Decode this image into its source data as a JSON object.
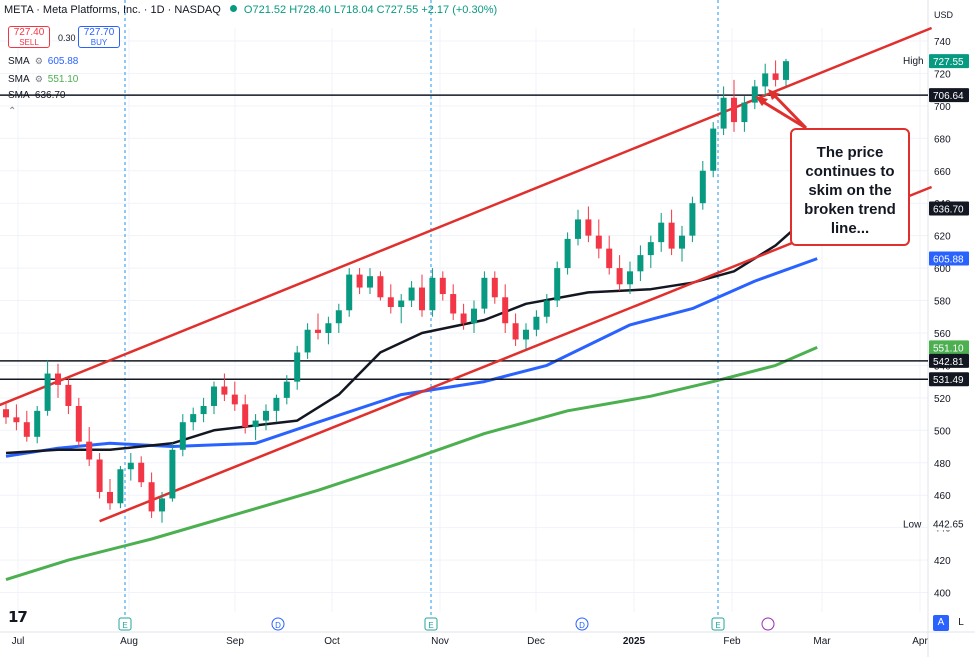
{
  "header": {
    "symbol": "META · Meta Platforms, Inc. · 1D · NASDAQ",
    "open": "O721.52",
    "high": "H728.40",
    "low": "L718.04",
    "close": "C727.55",
    "change": "+2.17 (+0.30%)"
  },
  "trade": {
    "sell_price": "727.40",
    "sell_label": "SELL",
    "spread": "0.30",
    "buy_price": "727.70",
    "buy_label": "BUY"
  },
  "indicators": [
    {
      "name": "SMA",
      "value": "605.88",
      "color": "#2962ff"
    },
    {
      "name": "SMA",
      "value": "551.10",
      "color": "#4caf50"
    },
    {
      "name": "SMA",
      "value": "636.70",
      "color": "#131722"
    }
  ],
  "currency": "USD",
  "annotation": {
    "lines": [
      "The price",
      "continues to",
      "skim on the",
      "broken trend",
      "line..."
    ]
  },
  "buttons": {
    "auto": "A",
    "log": "L"
  },
  "colors": {
    "up": "#089981",
    "down": "#f23645",
    "sma_short": "#2962ff",
    "sma_mid": "#131722",
    "sma_long": "#4caf50",
    "trendline": "#e0302d"
  },
  "chart_data": {
    "type": "candlestick",
    "x_ticks": [
      "Jul",
      "Aug",
      "Sep",
      "Oct",
      "Nov",
      "Dec",
      "2025",
      "Feb",
      "Mar",
      "Apr"
    ],
    "y_ticks": [
      400,
      420,
      440,
      460,
      480,
      500,
      520,
      540,
      560,
      580,
      600,
      620,
      640,
      660,
      680,
      700,
      720,
      740
    ],
    "ylim": [
      388,
      748
    ],
    "axis_labels": [
      {
        "text": "728.40",
        "value": 728.4,
        "bg": "#ffffff",
        "fg": "#131722",
        "tag": "High"
      },
      {
        "text": "727.55",
        "value": 727.55,
        "bg": "#089981",
        "fg": "#ffffff"
      },
      {
        "text": "706.64",
        "value": 706.64,
        "bg": "#131722",
        "fg": "#ffffff"
      },
      {
        "text": "636.70",
        "value": 636.7,
        "bg": "#131722",
        "fg": "#ffffff"
      },
      {
        "text": "605.88",
        "value": 605.88,
        "bg": "#2962ff",
        "fg": "#ffffff"
      },
      {
        "text": "551.10",
        "value": 551.1,
        "bg": "#4caf50",
        "fg": "#ffffff"
      },
      {
        "text": "542.81",
        "value": 542.81,
        "bg": "#131722",
        "fg": "#ffffff"
      },
      {
        "text": "531.49",
        "value": 531.49,
        "bg": "#131722",
        "fg": "#ffffff"
      },
      {
        "text": "442.65",
        "value": 442.65,
        "bg": "#ffffff",
        "fg": "#131722",
        "tag": "Low"
      }
    ],
    "horizontal_levels": [
      706.64,
      542.81,
      531.49
    ],
    "candles": [
      [
        513,
        518,
        504,
        508
      ],
      [
        508,
        516,
        500,
        505
      ],
      [
        505,
        512,
        493,
        496
      ],
      [
        496,
        515,
        492,
        512
      ],
      [
        512,
        543,
        509,
        535
      ],
      [
        535,
        541,
        520,
        528
      ],
      [
        528,
        532,
        510,
        515
      ],
      [
        515,
        520,
        490,
        493
      ],
      [
        493,
        502,
        478,
        482
      ],
      [
        482,
        486,
        458,
        462
      ],
      [
        462,
        470,
        451,
        455
      ],
      [
        455,
        478,
        452,
        476
      ],
      [
        476,
        486,
        469,
        480
      ],
      [
        480,
        484,
        465,
        468
      ],
      [
        468,
        474,
        446,
        450
      ],
      [
        450,
        462,
        443,
        458
      ],
      [
        458,
        492,
        456,
        488
      ],
      [
        488,
        510,
        484,
        505
      ],
      [
        505,
        514,
        500,
        510
      ],
      [
        510,
        520,
        505,
        515
      ],
      [
        515,
        530,
        510,
        527
      ],
      [
        527,
        535,
        518,
        522
      ],
      [
        522,
        530,
        512,
        516
      ],
      [
        516,
        522,
        498,
        502
      ],
      [
        502,
        510,
        494,
        506
      ],
      [
        506,
        516,
        500,
        512
      ],
      [
        512,
        522,
        505,
        520
      ],
      [
        520,
        534,
        516,
        530
      ],
      [
        530,
        552,
        525,
        548
      ],
      [
        548,
        566,
        544,
        562
      ],
      [
        562,
        572,
        556,
        560
      ],
      [
        560,
        570,
        553,
        566
      ],
      [
        566,
        578,
        560,
        574
      ],
      [
        574,
        600,
        570,
        596
      ],
      [
        596,
        600,
        584,
        588
      ],
      [
        588,
        600,
        584,
        595
      ],
      [
        595,
        598,
        580,
        582
      ],
      [
        582,
        590,
        572,
        576
      ],
      [
        576,
        584,
        566,
        580
      ],
      [
        580,
        592,
        576,
        588
      ],
      [
        588,
        596,
        570,
        574
      ],
      [
        574,
        600,
        570,
        594
      ],
      [
        594,
        598,
        580,
        584
      ],
      [
        584,
        590,
        568,
        572
      ],
      [
        572,
        578,
        562,
        566
      ],
      [
        566,
        580,
        560,
        575
      ],
      [
        575,
        598,
        572,
        594
      ],
      [
        594,
        598,
        578,
        582
      ],
      [
        582,
        590,
        560,
        566
      ],
      [
        566,
        572,
        552,
        556
      ],
      [
        556,
        566,
        550,
        562
      ],
      [
        562,
        574,
        558,
        570
      ],
      [
        570,
        584,
        566,
        580
      ],
      [
        580,
        604,
        576,
        600
      ],
      [
        600,
        622,
        596,
        618
      ],
      [
        618,
        636,
        614,
        630
      ],
      [
        630,
        638,
        616,
        620
      ],
      [
        620,
        630,
        606,
        612
      ],
      [
        612,
        620,
        596,
        600
      ],
      [
        600,
        608,
        586,
        590
      ],
      [
        590,
        604,
        584,
        598
      ],
      [
        598,
        614,
        592,
        608
      ],
      [
        608,
        620,
        600,
        616
      ],
      [
        616,
        634,
        610,
        628
      ],
      [
        628,
        636,
        608,
        612
      ],
      [
        612,
        626,
        604,
        620
      ],
      [
        620,
        644,
        616,
        640
      ],
      [
        640,
        666,
        636,
        660
      ],
      [
        660,
        690,
        656,
        686
      ],
      [
        686,
        712,
        682,
        705
      ],
      [
        705,
        716,
        684,
        690
      ],
      [
        690,
        706,
        684,
        702
      ],
      [
        702,
        716,
        698,
        712
      ],
      [
        712,
        726,
        706,
        720
      ],
      [
        720,
        728,
        712,
        716
      ],
      [
        716,
        729,
        712,
        727.55
      ]
    ],
    "sma_long_pts": [
      [
        0,
        408
      ],
      [
        6,
        420
      ],
      [
        14,
        433
      ],
      [
        22,
        448
      ],
      [
        30,
        463
      ],
      [
        38,
        480
      ],
      [
        46,
        498
      ],
      [
        54,
        512
      ],
      [
        62,
        521
      ],
      [
        68,
        530
      ],
      [
        74,
        540
      ],
      [
        78,
        551.1
      ]
    ],
    "sma_short_pts": [
      [
        0,
        484
      ],
      [
        5,
        489
      ],
      [
        10,
        492
      ],
      [
        16,
        490
      ],
      [
        20,
        491
      ],
      [
        24,
        492
      ],
      [
        30,
        505
      ],
      [
        38,
        522
      ],
      [
        46,
        530
      ],
      [
        52,
        540
      ],
      [
        60,
        565
      ],
      [
        66,
        575
      ],
      [
        72,
        592
      ],
      [
        78,
        605.88
      ]
    ],
    "sma_mid_pts": [
      [
        0,
        486
      ],
      [
        5,
        488
      ],
      [
        10,
        488
      ],
      [
        16,
        492
      ],
      [
        20,
        500
      ],
      [
        24,
        503
      ],
      [
        28,
        506
      ],
      [
        32,
        522
      ],
      [
        36,
        548
      ],
      [
        40,
        560
      ],
      [
        46,
        568
      ],
      [
        50,
        578
      ],
      [
        56,
        585
      ],
      [
        62,
        587
      ],
      [
        66,
        591
      ],
      [
        70,
        598
      ],
      [
        74,
        614
      ],
      [
        78,
        636.7
      ]
    ],
    "trendlines": [
      {
        "from": [
          -2,
          512
        ],
        "to": [
          89,
          748
        ]
      },
      {
        "from": [
          9,
          444
        ],
        "to": [
          89,
          650
        ]
      }
    ]
  }
}
